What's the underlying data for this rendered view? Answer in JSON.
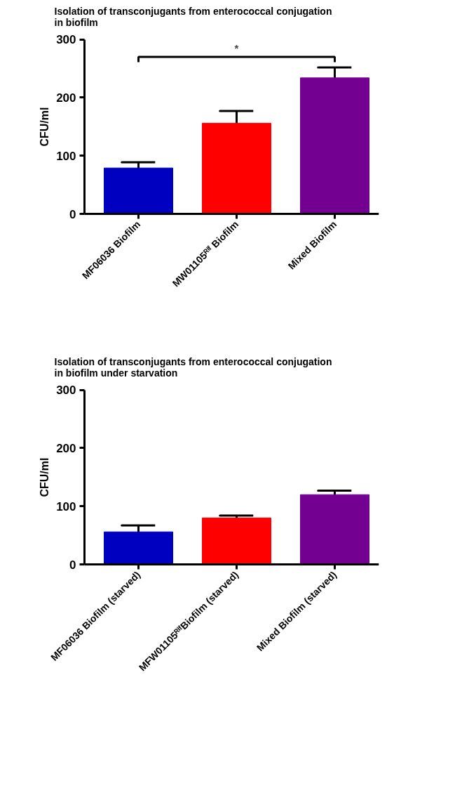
{
  "chart_data": [
    {
      "type": "bar",
      "title": "Isolation of transconjugants from enterococcal conjugation in biofilm",
      "ylabel": "CFU/ml",
      "categories": [
        "MF06036 Biofilm",
        "MW01105ᴿⁱᶠ Biofilm",
        "Mixed Biofilm"
      ],
      "values": [
        79,
        156,
        234
      ],
      "errors": [
        10,
        21,
        18
      ],
      "colors": [
        "#0000c0",
        "#ff0000",
        "#730090"
      ],
      "ylim": [
        0,
        300
      ],
      "yticks": [
        0,
        100,
        200,
        300
      ],
      "grid": false,
      "annotations": [
        "*"
      ]
    },
    {
      "type": "bar",
      "title": "Isolation of transconjugants from enterococcal conjugation in biofilm under starvation",
      "ylabel": "CFU/ml",
      "categories": [
        "MF06036 Biofilm (starved)",
        "MFW01105ᴿⁱᶠBiofilm (starved)",
        "Mixed Biofilm (starved)"
      ],
      "values": [
        56,
        80,
        120
      ],
      "errors": [
        11,
        4,
        7
      ],
      "colors": [
        "#0000c0",
        "#ff0000",
        "#730090"
      ],
      "ylim": [
        0,
        300
      ],
      "yticks": [
        0,
        100,
        200,
        300
      ],
      "grid": false
    }
  ]
}
